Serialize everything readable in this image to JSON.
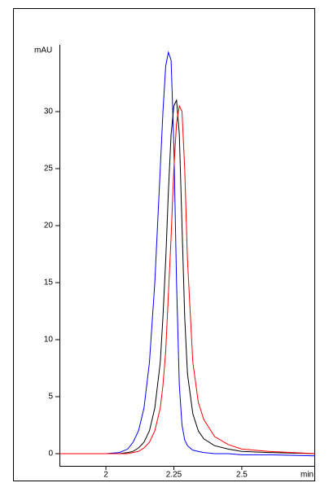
{
  "chart_data": {
    "type": "line",
    "y_label": "mAU",
    "x_label": "min",
    "x": [
      1.83,
      1.9,
      2.0,
      2.05,
      2.08,
      2.1,
      2.12,
      2.14,
      2.16,
      2.18,
      2.2,
      2.21,
      2.22,
      2.23,
      2.24,
      2.25,
      2.26,
      2.27,
      2.28,
      2.29,
      2.3,
      2.32,
      2.34,
      2.36,
      2.4,
      2.45,
      2.5,
      2.6,
      2.77
    ],
    "series": [
      {
        "color": "#0000ff",
        "values": [
          0,
          0,
          0,
          0.1,
          0.4,
          1,
          2,
          4,
          8,
          15,
          25,
          30,
          34,
          35.2,
          34.5,
          27,
          15,
          6,
          2.5,
          1.2,
          0.7,
          0.3,
          0.2,
          0.1,
          0,
          0,
          -0.1,
          -0.1,
          -0.2
        ]
      },
      {
        "color": "#000000",
        "values": [
          0,
          0,
          0,
          0,
          0.1,
          0.2,
          0.5,
          1,
          2,
          4,
          8,
          12,
          17,
          23,
          28,
          30.5,
          31,
          28,
          20,
          12,
          7,
          3.5,
          2,
          1.3,
          0.7,
          0.4,
          0.2,
          0.1,
          0
        ]
      },
      {
        "color": "#ff0000",
        "values": [
          0,
          0,
          0,
          0,
          0,
          0.1,
          0.2,
          0.5,
          1,
          2,
          4,
          6,
          9,
          14,
          19,
          25,
          29,
          30.5,
          30,
          25,
          17,
          8,
          4.5,
          3,
          1.5,
          0.8,
          0.4,
          0.2,
          0
        ]
      }
    ],
    "xlim": [
      1.829,
      2.77
    ],
    "ylim": [
      -1.07,
      35.86
    ],
    "xticks": [
      2,
      2.25,
      2.5
    ],
    "yticks": [
      0,
      5,
      10,
      15,
      20,
      25,
      30
    ]
  }
}
